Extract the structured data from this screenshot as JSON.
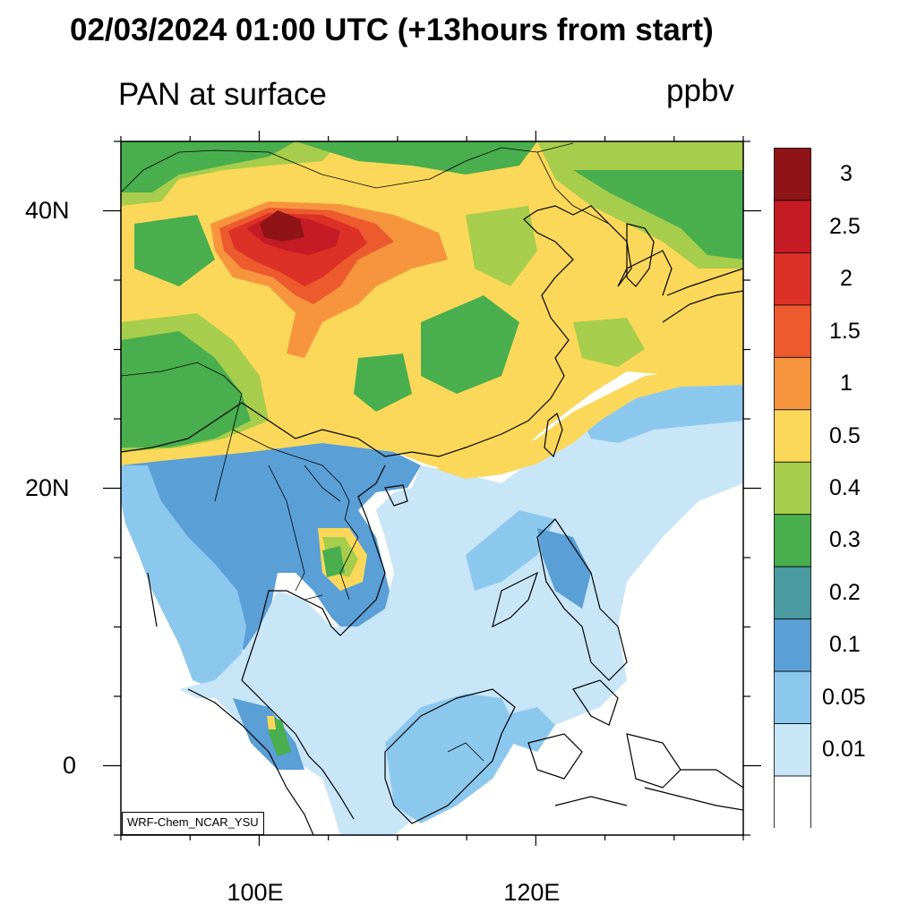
{
  "title": "02/03/2024 01:00 UTC (+13hours from start)",
  "subtitle": "PAN at surface",
  "units": "ppbv",
  "credit": "WRF-Chem_NCAR_YSU",
  "map": {
    "lat_labels": [
      {
        "text": "40N",
        "lat": 40
      },
      {
        "text": "20N",
        "lat": 20
      },
      {
        "text": "0",
        "lat": 0
      }
    ],
    "lon_labels": [
      {
        "text": "100E",
        "lon": 100
      },
      {
        "text": "120E",
        "lon": 120
      }
    ],
    "extent": {
      "lon_min": 90,
      "lon_max": 135,
      "lat_min": -5,
      "lat_max": 45
    },
    "tick_step_deg": 5
  },
  "colorbar": {
    "levels": [
      "3",
      "2.5",
      "2",
      "1.5",
      "1",
      "0.5",
      "0.4",
      "0.3",
      "0.2",
      "0.1",
      "0.05",
      "0.01"
    ],
    "colors": [
      "#8e1418",
      "#c51b24",
      "#dd3026",
      "#ec5a2e",
      "#f7953f",
      "#fbd859",
      "#a6cd4b",
      "#49ae4d",
      "#4a9ba0",
      "#5a9fd6",
      "#8cc8ee",
      "#c8e6f8",
      "#ffffff"
    ]
  },
  "field_colors": {
    "ocean": "#ffffff",
    "v001": "#c8e6f8",
    "v005": "#8cc8ee",
    "v01": "#5a9fd6",
    "v02": "#4a9ba0",
    "v03": "#49ae4d",
    "v04": "#a6cd4b",
    "v05": "#fbd859",
    "v1": "#f7953f",
    "v15": "#ec5a2e",
    "v2": "#dd3026",
    "v25": "#c51b24",
    "v3": "#8e1418"
  }
}
